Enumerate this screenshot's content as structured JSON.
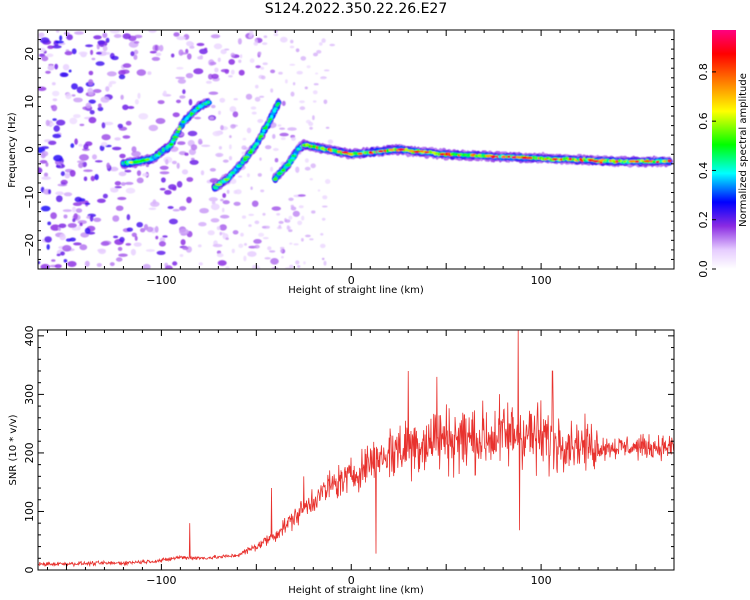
{
  "title": "S124.2022.350.22.26.E27",
  "chart_data": [
    {
      "type": "heatmap",
      "xlabel": "Height of straight line (km)",
      "ylabel": "Frequency (Hz)",
      "xlim": [
        -165,
        170
      ],
      "ylim": [
        -25,
        25
      ],
      "x_ticks": [
        -100,
        0,
        100
      ],
      "y_ticks": [
        -20,
        -10,
        0,
        10,
        20
      ],
      "colorbar": {
        "label": "Normalized spectral amplitude",
        "range": [
          0,
          0.97
        ],
        "ticks": [
          "0.0",
          "0.2",
          "0.4",
          "0.6",
          "0.8"
        ],
        "colormap": [
          "#ffffff",
          "#8a2be2",
          "#0000ff",
          "#00ffff",
          "#00ff00",
          "#ffff00",
          "#ff8000",
          "#ff0000",
          "#ff0080"
        ]
      },
      "ridges": [
        {
          "name": "main",
          "points": [
            [
              -120,
              -3
            ],
            [
              -105,
              -2
            ],
            [
              -95,
              1
            ],
            [
              -88,
              6
            ],
            [
              -80,
              9
            ],
            [
              -75,
              10
            ]
          ]
        },
        {
          "name": "branch1",
          "points": [
            [
              -72,
              -8
            ],
            [
              -65,
              -6
            ],
            [
              -58,
              -3
            ],
            [
              -50,
              1
            ],
            [
              -43,
              6
            ],
            [
              -38,
              10
            ]
          ]
        },
        {
          "name": "branch2",
          "points": [
            [
              -40,
              -6
            ],
            [
              -33,
              -3
            ],
            [
              -28,
              0
            ],
            [
              -25,
              1
            ]
          ]
        },
        {
          "name": "flat",
          "points": [
            [
              -25,
              1
            ],
            [
              0,
              -1
            ],
            [
              25,
              0
            ],
            [
              50,
              -1
            ],
            [
              80,
              -1.5
            ],
            [
              110,
              -2
            ],
            [
              140,
              -2.5
            ],
            [
              168,
              -2.5
            ]
          ]
        }
      ]
    },
    {
      "type": "line",
      "xlabel": "Height of straight line (km)",
      "ylabel": "SNR (10 * v/v)",
      "xlim": [
        -165,
        170
      ],
      "ylim": [
        0,
        410
      ],
      "x_ticks": [
        -100,
        0,
        100
      ],
      "y_ticks": [
        0,
        100,
        200,
        300,
        400
      ],
      "color": "#e8322e",
      "envelope": {
        "x": [
          -165,
          -120,
          -100,
          -90,
          -80,
          -70,
          -60,
          -50,
          -40,
          -30,
          -20,
          -10,
          0,
          10,
          20,
          30,
          40,
          50,
          60,
          70,
          80,
          90,
          100,
          110,
          120,
          130,
          140,
          150,
          160,
          170
        ],
        "y": [
          10,
          12,
          16,
          22,
          20,
          22,
          25,
          40,
          60,
          90,
          120,
          145,
          160,
          185,
          200,
          210,
          220,
          225,
          225,
          225,
          230,
          235,
          225,
          220,
          215,
          210,
          210,
          210,
          210,
          210
        ]
      },
      "spikes": [
        {
          "x": 88,
          "y": 412
        },
        {
          "x": 88.6,
          "y": 68
        },
        {
          "x": 30,
          "y": 340
        },
        {
          "x": 45,
          "y": 330
        },
        {
          "x": 106,
          "y": 340
        },
        {
          "x": -85,
          "y": 80
        },
        {
          "x": -42,
          "y": 140
        },
        {
          "x": -25,
          "y": 160
        },
        {
          "x": 13,
          "y": 28
        }
      ]
    }
  ]
}
